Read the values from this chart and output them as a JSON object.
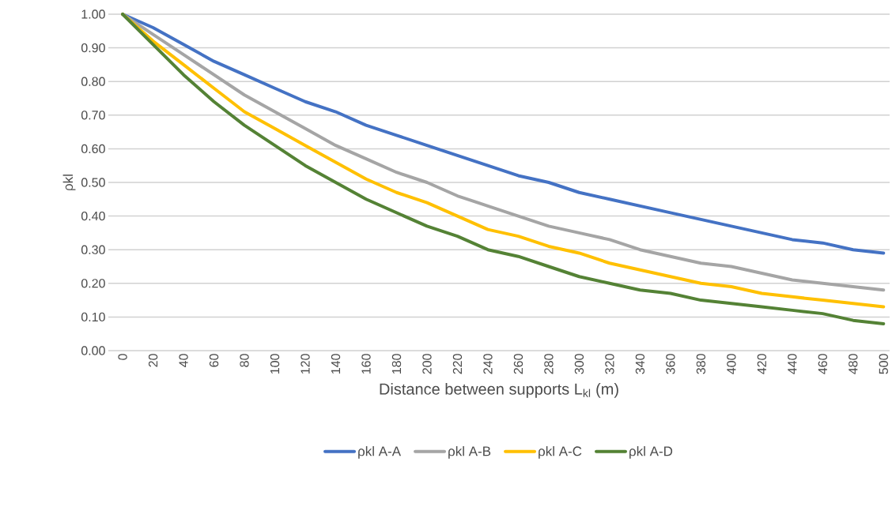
{
  "chart_data": {
    "type": "line",
    "xlabel": "Distance between supports L$_{kl}$ (m)",
    "ylabel": "ρkl",
    "categories": [
      "0",
      "20",
      "40",
      "60",
      "80",
      "100",
      "120",
      "140",
      "160",
      "180",
      "200",
      "220",
      "240",
      "260",
      "280",
      "300",
      "320",
      "340",
      "360",
      "380",
      "400",
      "420",
      "440",
      "460",
      "480",
      "500"
    ],
    "ylim": [
      0,
      1
    ],
    "yticks": [
      {
        "value": 0,
        "label": "0.00"
      },
      {
        "value": 0.1,
        "label": "0.10"
      },
      {
        "value": 0.2,
        "label": "0.20"
      },
      {
        "value": 0.3,
        "label": "0.30"
      },
      {
        "value": 0.4,
        "label": "0.40"
      },
      {
        "value": 0.5,
        "label": "0.50"
      },
      {
        "value": 0.6,
        "label": "0.60"
      },
      {
        "value": 0.7,
        "label": "0.70"
      },
      {
        "value": 0.8,
        "label": "0.80"
      },
      {
        "value": 0.9,
        "label": "0.90"
      },
      {
        "value": 1,
        "label": "1.00"
      }
    ],
    "grid": "y",
    "legend": "bottom",
    "marker": "none",
    "line_style": "solid",
    "series": [
      {
        "name": "ρkl A-A",
        "color": "#4472c4",
        "values": [
          1.0,
          0.96,
          0.91,
          0.86,
          0.82,
          0.78,
          0.74,
          0.71,
          0.67,
          0.64,
          0.61,
          0.58,
          0.55,
          0.52,
          0.5,
          0.47,
          0.45,
          0.43,
          0.41,
          0.39,
          0.37,
          0.35,
          0.33,
          0.32,
          0.3,
          0.29
        ]
      },
      {
        "name": "ρkl A-B",
        "color": "#a5a5a5",
        "values": [
          1.0,
          0.94,
          0.88,
          0.82,
          0.76,
          0.71,
          0.66,
          0.61,
          0.57,
          0.53,
          0.5,
          0.46,
          0.43,
          0.4,
          0.37,
          0.35,
          0.33,
          0.3,
          0.28,
          0.26,
          0.25,
          0.23,
          0.21,
          0.2,
          0.19,
          0.18
        ]
      },
      {
        "name": "ρkl A-C",
        "color": "#ffc000",
        "values": [
          1.0,
          0.92,
          0.85,
          0.78,
          0.71,
          0.66,
          0.61,
          0.56,
          0.51,
          0.47,
          0.44,
          0.4,
          0.36,
          0.34,
          0.31,
          0.29,
          0.26,
          0.24,
          0.22,
          0.2,
          0.19,
          0.17,
          0.16,
          0.15,
          0.14,
          0.13
        ]
      },
      {
        "name": "ρkl A-D",
        "color": "#548235",
        "values": [
          1.0,
          0.91,
          0.82,
          0.74,
          0.67,
          0.61,
          0.55,
          0.5,
          0.45,
          0.41,
          0.37,
          0.34,
          0.3,
          0.28,
          0.25,
          0.22,
          0.2,
          0.18,
          0.17,
          0.15,
          0.14,
          0.13,
          0.12,
          0.11,
          0.09,
          0.08
        ]
      }
    ]
  }
}
